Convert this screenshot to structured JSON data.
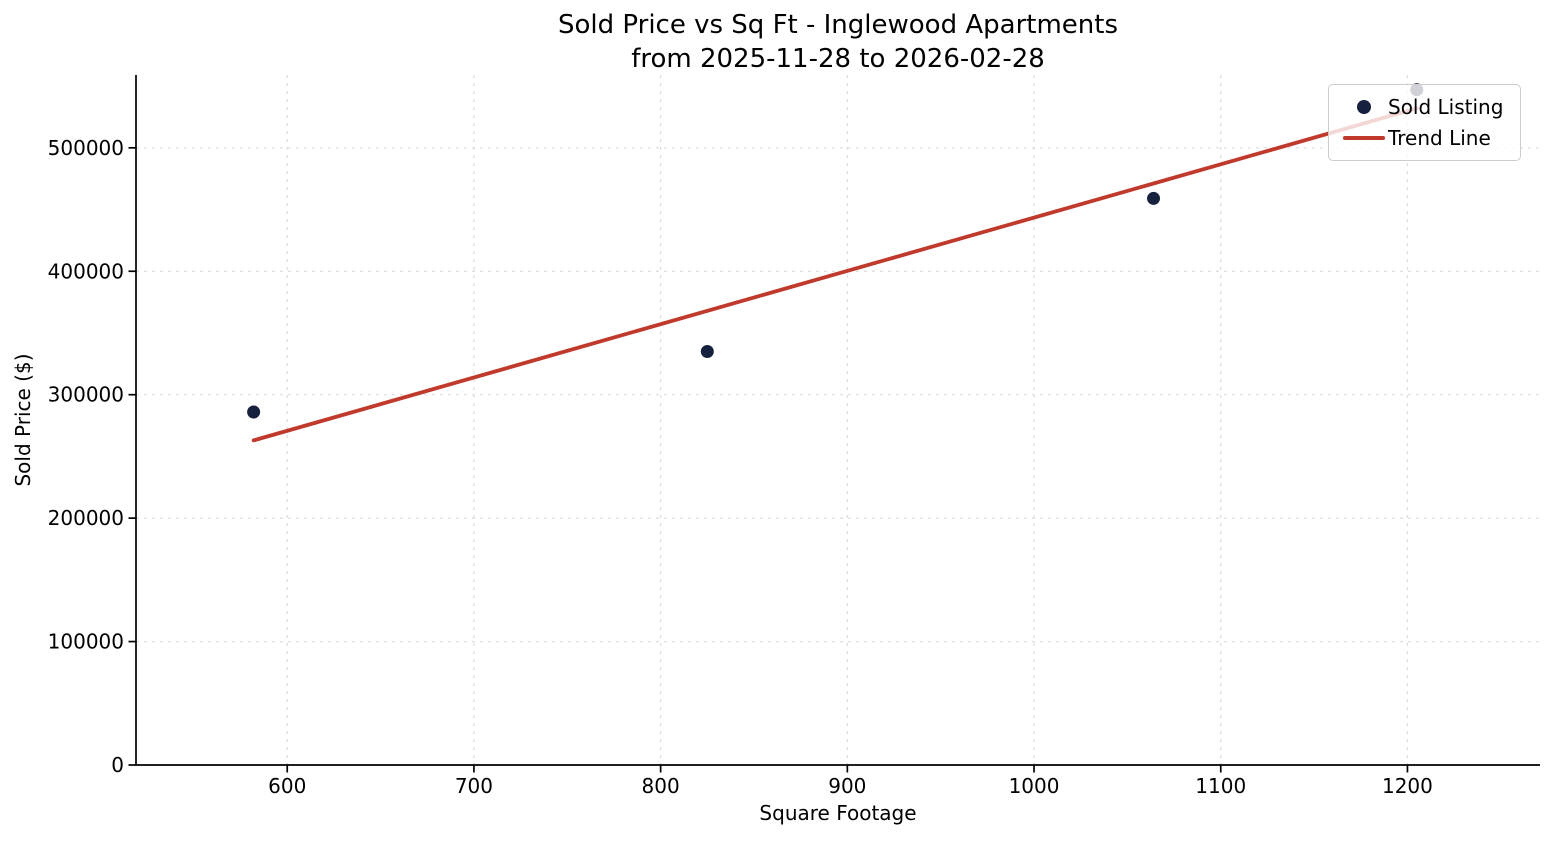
{
  "chart_data": {
    "type": "scatter",
    "title": "Sold Price vs Sq Ft - Inglewood Apartments",
    "subtitle": "from 2025-11-28 to 2026-02-28",
    "xlabel": "Square Footage",
    "ylabel": "Sold Price ($)",
    "xlim": [
      519,
      1271
    ],
    "ylim": [
      0,
      559000
    ],
    "x_ticks": [
      600,
      700,
      800,
      900,
      1000,
      1100,
      1200
    ],
    "y_ticks": [
      0,
      100000,
      200000,
      300000,
      400000,
      500000
    ],
    "grid": true,
    "grid_color": "#dcdcdc",
    "spine_color": "#000000",
    "tick_label_color": "#000000",
    "legend_position": "upper right",
    "series": [
      {
        "name": "Sold Listing",
        "type": "scatter",
        "color": "#16213e",
        "marker_radius": 6.5,
        "points": [
          {
            "x": 582,
            "y": 286000
          },
          {
            "x": 825,
            "y": 335000
          },
          {
            "x": 1064,
            "y": 459000
          },
          {
            "x": 1205,
            "y": 547000
          }
        ]
      },
      {
        "name": "Trend Line",
        "type": "line",
        "color": "#c0392b",
        "line_width": 3.8,
        "points": [
          {
            "x": 582,
            "y": 263000
          },
          {
            "x": 1205,
            "y": 532000
          }
        ]
      }
    ]
  }
}
